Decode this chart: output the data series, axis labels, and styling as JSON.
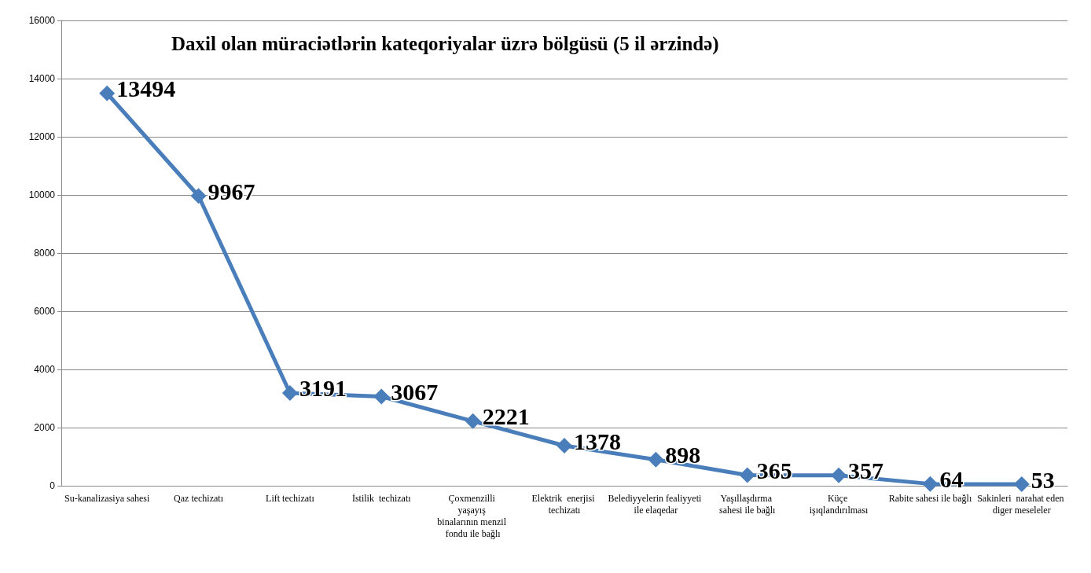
{
  "chart_data": {
    "type": "line",
    "title": "Daxil olan müraciətlərin kateqoriyalar üzrə bölgüsü (5 il ərzində)",
    "categories": [
      "Su-kanalizasiya sahesi",
      "Qaz techizatı",
      "Lift techizatı",
      "İstilik  techizatı",
      "Çoxmenzilli yaşayış binalarının menzil fondu ile bağlı",
      "Elektrik  enerjisi techizatı",
      "Belediyyelerin fealiyyeti ile elaqedar",
      "Yaşıllaşdırma sahesi ile bağlı",
      "Küçe işıqlandırılması",
      "Rabite sahesi ile bağlı",
      "Sakinleri  narahat eden diger meseleler"
    ],
    "series": [
      {
        "color": "#4a7ebb",
        "values": [
          13494,
          9967,
          3191,
          3067,
          2221,
          1378,
          898,
          365,
          357,
          64,
          53
        ]
      }
    ],
    "ylim": [
      0,
      16000
    ],
    "yticks": [
      0,
      2000,
      4000,
      6000,
      8000,
      10000,
      12000,
      14000,
      16000
    ],
    "grid": "y",
    "marker": "diamond",
    "line_style": "solid",
    "data_labels": true
  }
}
